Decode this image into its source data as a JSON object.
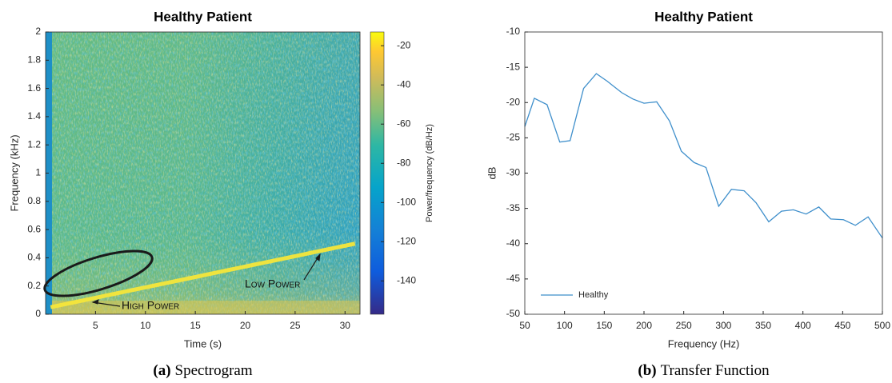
{
  "chart_data": [
    {
      "type": "spectrogram",
      "title": "Healthy Patient",
      "xlabel": "Time (s)",
      "ylabel": "Frequency (kHz)",
      "xlim": [
        0,
        31.5
      ],
      "ylim": [
        0,
        2
      ],
      "xticks": [
        5,
        10,
        15,
        20,
        25,
        30
      ],
      "yticks": [
        0,
        0.2,
        0.4,
        0.6,
        0.8,
        1,
        1.2,
        1.4,
        1.6,
        1.8,
        2
      ],
      "colorbar": {
        "label": "Power/frequency (dB/Hz)",
        "lim": [
          -157,
          -13
        ],
        "ticks": [
          -20,
          -40,
          -60,
          -80,
          -100,
          -120,
          -140
        ]
      },
      "series": [
        {
          "color": "#f5e63a",
          "x": [
            0.5,
            31
          ],
          "values": [
            0.05,
            0.5
          ]
        }
      ],
      "annotations": [
        {
          "text": "High Power"
        },
        {
          "text": "Low Power"
        }
      ],
      "caption_label": "(a)",
      "caption": "Spectrogram"
    },
    {
      "type": "line",
      "title": "Healthy Patient",
      "xlabel": "Frequency (Hz)",
      "ylabel": "dB",
      "xlim": [
        50,
        500
      ],
      "ylim": [
        -50,
        -10
      ],
      "xticks": [
        50,
        100,
        150,
        200,
        250,
        300,
        350,
        400,
        450,
        500
      ],
      "yticks": [
        -50,
        -45,
        -40,
        -35,
        -30,
        -25,
        -20,
        -15,
        -10
      ],
      "legend": "lower left",
      "series": [
        {
          "name": "Healthy",
          "color": "#3f8fcb",
          "x": [
            50,
            62,
            78,
            94,
            107,
            124,
            140,
            154,
            172,
            186,
            200,
            216,
            232,
            247,
            263,
            278,
            294,
            310,
            326,
            341,
            357,
            373,
            388,
            404,
            420,
            435,
            451,
            466,
            482,
            500
          ],
          "values": [
            -23.4,
            -19.4,
            -20.3,
            -25.6,
            -25.4,
            -18.0,
            -15.9,
            -17.0,
            -18.6,
            -19.5,
            -20.1,
            -19.9,
            -22.6,
            -26.9,
            -28.5,
            -29.2,
            -34.7,
            -32.3,
            -32.5,
            -34.2,
            -36.9,
            -35.4,
            -35.2,
            -35.8,
            -34.8,
            -36.5,
            -36.6,
            -37.4,
            -36.2,
            -39.2
          ]
        }
      ],
      "caption_label": "(b)",
      "caption": "Transfer Function"
    }
  ]
}
